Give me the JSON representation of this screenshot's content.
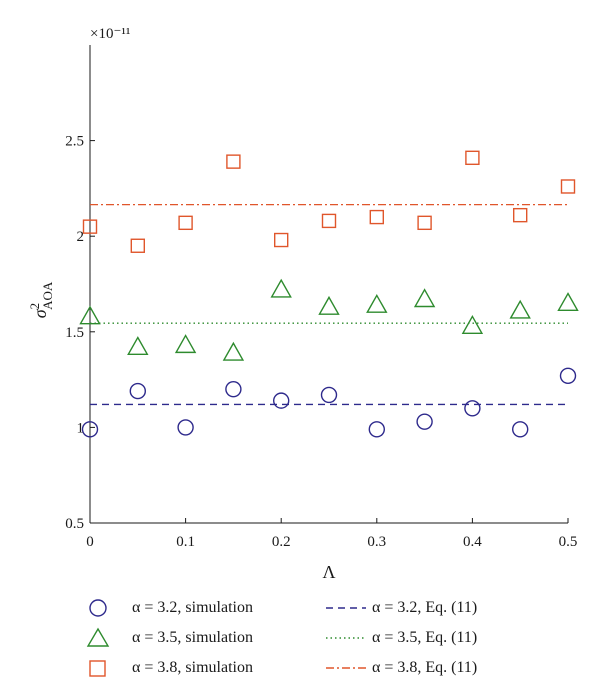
{
  "chart_data": {
    "type": "scatter",
    "title": "",
    "xlabel": "Λ",
    "ylabel": "σ²AOA",
    "y_multiplier": "×10⁻¹¹",
    "xlim": [
      0,
      0.5
    ],
    "ylim": [
      0.5,
      3.0
    ],
    "x_ticks": [
      0,
      0.1,
      0.2,
      0.3,
      0.4,
      0.5
    ],
    "x_tick_labels": [
      "0",
      "0.1",
      "0.2",
      "0.3",
      "0.4",
      "0.5"
    ],
    "y_ticks": [
      0.5,
      1,
      1.5,
      2,
      2.5
    ],
    "y_tick_labels": [
      "0.5",
      "1",
      "1.5",
      "2",
      "2.5"
    ],
    "grid": false,
    "legend_position": "bottom",
    "x": [
      0,
      0.05,
      0.1,
      0.15,
      0.2,
      0.25,
      0.3,
      0.35,
      0.4,
      0.45,
      0.5
    ],
    "series": [
      {
        "name": "α = 3.2, simulation",
        "marker": "circle",
        "color": "#2e2a8c",
        "values": [
          0.99,
          1.19,
          1.0,
          1.2,
          1.14,
          1.17,
          0.99,
          1.03,
          1.1,
          0.99,
          1.27
        ]
      },
      {
        "name": "α = 3.5, simulation",
        "marker": "triangle",
        "color": "#2e8b2e",
        "values": [
          1.58,
          1.42,
          1.43,
          1.39,
          1.72,
          1.63,
          1.64,
          1.67,
          1.53,
          1.61,
          1.65
        ]
      },
      {
        "name": "α = 3.8, simulation",
        "marker": "square",
        "color": "#e0562b",
        "values": [
          2.05,
          1.95,
          2.07,
          2.39,
          1.98,
          2.08,
          2.1,
          2.07,
          2.41,
          2.11,
          2.26
        ]
      }
    ],
    "lines": [
      {
        "name": "α = 3.2, Eq. (11)",
        "style": "dashed",
        "color": "#2e2a8c",
        "value": 1.12
      },
      {
        "name": "α = 3.5, Eq. (11)",
        "style": "dotted",
        "color": "#2e8b2e",
        "value": 1.545
      },
      {
        "name": "α = 3.8, Eq. (11)",
        "style": "dashdot",
        "color": "#e0562b",
        "value": 2.165
      }
    ]
  }
}
